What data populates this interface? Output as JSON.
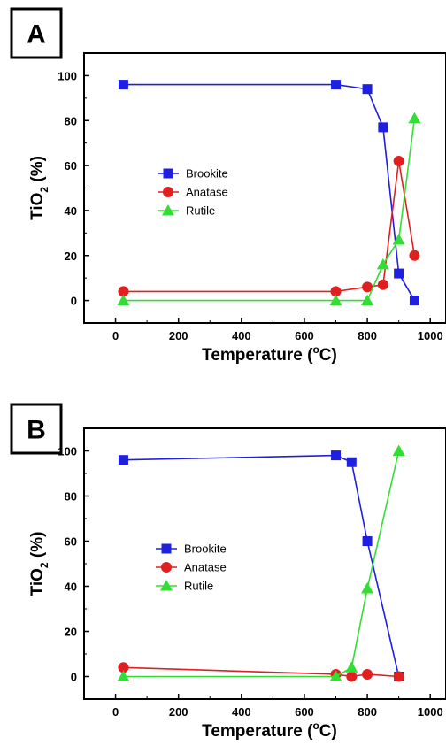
{
  "chart_data": [
    {
      "type": "line",
      "panel_label": "A",
      "xlabel_main": "Temperature (",
      "xlabel_sup": "o",
      "xlabel_tail": "C)",
      "ylabel_main": "TiO",
      "ylabel_sub": "2",
      "ylabel_tail": " (%)",
      "xlim": [
        -100,
        1050
      ],
      "ylim": [
        -10,
        110
      ],
      "xticks": [
        0,
        200,
        400,
        600,
        800,
        1000
      ],
      "yticks": [
        0,
        20,
        40,
        60,
        80,
        100
      ],
      "grid": false,
      "legend_position": "center-left",
      "series": [
        {
          "name": "Brookite",
          "color": "#1f1fe0",
          "marker": "square",
          "x": [
            25,
            700,
            800,
            850,
            900,
            950
          ],
          "y": [
            96,
            96,
            94,
            77,
            12,
            0
          ]
        },
        {
          "name": "Anatase",
          "color": "#e02020",
          "marker": "circle",
          "x": [
            25,
            700,
            800,
            850,
            900,
            950
          ],
          "y": [
            4,
            4,
            6,
            7,
            62,
            20
          ]
        },
        {
          "name": "Rutile",
          "color": "#33dd33",
          "marker": "triangle",
          "x": [
            25,
            700,
            800,
            850,
            900,
            950
          ],
          "y": [
            0,
            0,
            0,
            16,
            27,
            81
          ]
        }
      ]
    },
    {
      "type": "line",
      "panel_label": "B",
      "xlabel_main": "Temperature (",
      "xlabel_sup": "o",
      "xlabel_tail": "C)",
      "ylabel_main": "TiO",
      "ylabel_sub": "2",
      "ylabel_tail": " (%)",
      "xlim": [
        -100,
        1050
      ],
      "ylim": [
        -10,
        110
      ],
      "xticks": [
        0,
        200,
        400,
        600,
        800,
        1000
      ],
      "yticks": [
        0,
        20,
        40,
        60,
        80,
        100
      ],
      "grid": false,
      "legend_position": "center-left",
      "series": [
        {
          "name": "Brookite",
          "color": "#1f1fe0",
          "marker": "square",
          "x": [
            25,
            700,
            750,
            800,
            900
          ],
          "y": [
            96,
            98,
            95,
            60,
            0
          ]
        },
        {
          "name": "Anatase",
          "color": "#e02020",
          "marker": "circle",
          "x": [
            25,
            700,
            750,
            800,
            900
          ],
          "y": [
            4,
            1,
            0,
            1,
            0
          ]
        },
        {
          "name": "Rutile",
          "color": "#33dd33",
          "marker": "triangle",
          "x": [
            25,
            700,
            750,
            800,
            900
          ],
          "y": [
            0,
            0,
            4,
            39,
            100
          ]
        }
      ]
    }
  ]
}
